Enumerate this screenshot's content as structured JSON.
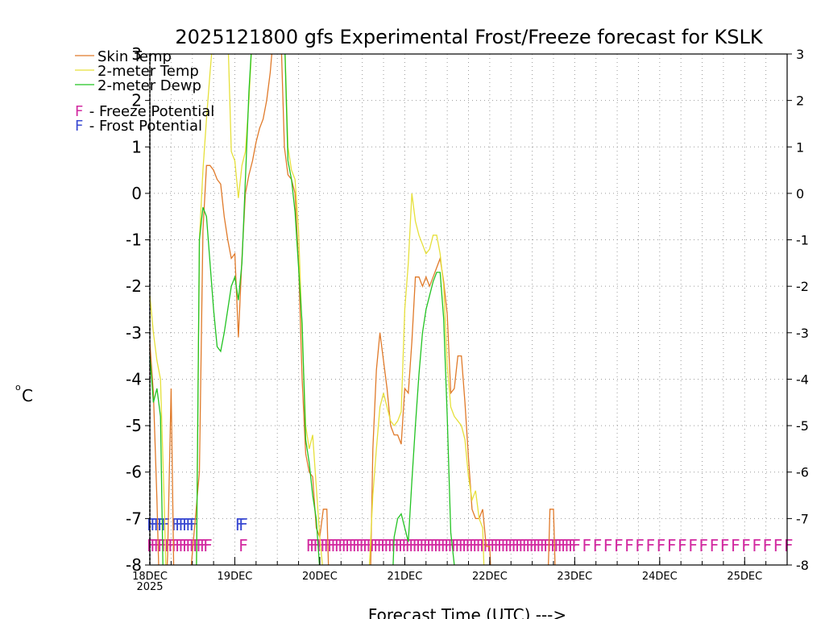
{
  "chart_data": {
    "type": "line",
    "title": "2025121800 gfs Experimental Frost/Freeze forecast for KSLK",
    "xlabel": "Forecast Time (UTC) --->",
    "ylabel": "oC",
    "ylabel_unit": "C",
    "ylim": [
      -8,
      3
    ],
    "xlim_hours": [
      0,
      180
    ],
    "grid": true,
    "y_ticks_left": [
      "3",
      "2",
      "1",
      "0",
      "-1",
      "-2",
      "-3",
      "-4",
      "-5",
      "-6",
      "-7",
      "-8"
    ],
    "y_ticks_right": [
      "3",
      "2",
      "1",
      "0",
      "-1",
      "-2",
      "-3",
      "-4",
      "-5",
      "-6",
      "-7",
      "-8"
    ],
    "x_ticks": [
      {
        "label": "18DEC",
        "sub": "2025",
        "hour": 0
      },
      {
        "label": "19DEC",
        "sub": "",
        "hour": 24
      },
      {
        "label": "20DEC",
        "sub": "",
        "hour": 48
      },
      {
        "label": "21DEC",
        "sub": "",
        "hour": 72
      },
      {
        "label": "22DEC",
        "sub": "",
        "hour": 96
      },
      {
        "label": "23DEC",
        "sub": "",
        "hour": 120
      },
      {
        "label": "24DEC",
        "sub": "",
        "hour": 144
      },
      {
        "label": "25DEC",
        "sub": "",
        "hour": 168
      }
    ],
    "legend": {
      "position": "top-left",
      "series_entries": [
        {
          "label": "Skin Temp",
          "color": "#e07a2a"
        },
        {
          "label": "2-meter Temp",
          "color": "#e6e03a"
        },
        {
          "label": "2-meter Dewp",
          "color": "#22c322"
        }
      ],
      "marker_entries": [
        {
          "mark": "F",
          "text": " - Freeze Potential",
          "color": "#d22aa0"
        },
        {
          "mark": "F",
          "text": " - Frost Potential",
          "color": "#3a4ad2"
        }
      ]
    },
    "series": [
      {
        "name": "Skin Temp",
        "color": "#e07a2a",
        "points": [
          [
            0,
            -3.2
          ],
          [
            1,
            -4.3
          ],
          [
            2,
            -6.6
          ],
          [
            3,
            -9.5
          ],
          [
            4,
            -9.5
          ],
          [
            5,
            -7.8
          ],
          [
            6,
            -4.2
          ],
          [
            7,
            -9.5
          ],
          [
            10,
            -9.5
          ],
          [
            14,
            -6
          ],
          [
            15,
            -0.8
          ],
          [
            16,
            0.6
          ],
          [
            17,
            0.6
          ],
          [
            18,
            0.5
          ],
          [
            19,
            0.3
          ],
          [
            20,
            0.2
          ],
          [
            21,
            -0.5
          ],
          [
            22,
            -1
          ],
          [
            23,
            -1.4
          ],
          [
            24,
            -1.3
          ],
          [
            25,
            -3.1
          ],
          [
            26,
            -1.4
          ],
          [
            27,
            0
          ],
          [
            28,
            0.4
          ],
          [
            29,
            0.7
          ],
          [
            30,
            1.1
          ],
          [
            31,
            1.4
          ],
          [
            32,
            1.6
          ],
          [
            33,
            2
          ],
          [
            34,
            2.6
          ],
          [
            35,
            3.5
          ],
          [
            37,
            3.5
          ],
          [
            38,
            1
          ],
          [
            39,
            0.4
          ],
          [
            40,
            0.3
          ],
          [
            41,
            0
          ],
          [
            42,
            -1.5
          ],
          [
            43,
            -4
          ],
          [
            44,
            -5.6
          ],
          [
            45,
            -6
          ],
          [
            46,
            -6.1
          ],
          [
            47,
            -7.2
          ],
          [
            48,
            -7.4
          ],
          [
            49,
            -6.8
          ],
          [
            50,
            -6.8
          ],
          [
            51,
            -9.5
          ],
          [
            62,
            -9.5
          ],
          [
            63,
            -5.5
          ],
          [
            64,
            -3.8
          ],
          [
            65,
            -3
          ],
          [
            66,
            -3.6
          ],
          [
            67,
            -4.2
          ],
          [
            68,
            -5
          ],
          [
            69,
            -5.2
          ],
          [
            70,
            -5.2
          ],
          [
            71,
            -5.4
          ],
          [
            72,
            -4.2
          ],
          [
            73,
            -4.3
          ],
          [
            74,
            -3.2
          ],
          [
            75,
            -1.8
          ],
          [
            76,
            -1.8
          ],
          [
            77,
            -2
          ],
          [
            78,
            -1.8
          ],
          [
            79,
            -2
          ],
          [
            80,
            -1.8
          ],
          [
            81,
            -1.6
          ],
          [
            82,
            -1.4
          ],
          [
            83,
            -1.9
          ],
          [
            84,
            -2.6
          ],
          [
            85,
            -4.3
          ],
          [
            86,
            -4.2
          ],
          [
            87,
            -3.5
          ],
          [
            88,
            -3.5
          ],
          [
            89,
            -4.5
          ],
          [
            90,
            -5.7
          ],
          [
            91,
            -6.8
          ],
          [
            92,
            -7
          ],
          [
            93,
            -7
          ],
          [
            94,
            -6.8
          ],
          [
            95,
            -7.6
          ],
          [
            96,
            -7.6
          ],
          [
            97,
            -9.5
          ],
          [
            112,
            -9.5
          ],
          [
            113,
            -6.8
          ],
          [
            114,
            -6.8
          ],
          [
            115,
            -9.5
          ]
        ]
      },
      {
        "name": "2-meter Temp",
        "color": "#e6e03a",
        "points": [
          [
            0,
            -2.2
          ],
          [
            1,
            -3
          ],
          [
            2,
            -3.6
          ],
          [
            3,
            -4
          ],
          [
            4,
            -6.5
          ],
          [
            5,
            -9.5
          ],
          [
            13,
            -9.5
          ],
          [
            14,
            -1
          ],
          [
            15,
            0.5
          ],
          [
            16,
            1.6
          ],
          [
            17,
            2.6
          ],
          [
            18,
            3.5
          ],
          [
            22,
            3.5
          ],
          [
            23,
            0.9
          ],
          [
            24,
            0.7
          ],
          [
            25,
            -0.1
          ],
          [
            26,
            0.6
          ],
          [
            27,
            0.9
          ],
          [
            28,
            2
          ],
          [
            29,
            3.5
          ],
          [
            38,
            3.5
          ],
          [
            39,
            1
          ],
          [
            40,
            0.5
          ],
          [
            41,
            0.3
          ],
          [
            42,
            -0.8
          ],
          [
            43,
            -3
          ],
          [
            44,
            -5
          ],
          [
            45,
            -5.5
          ],
          [
            46,
            -5.2
          ],
          [
            47,
            -6.3
          ],
          [
            48,
            -7.4
          ],
          [
            49,
            -8.2
          ],
          [
            60,
            -9.5
          ],
          [
            62,
            -8
          ],
          [
            63,
            -6.5
          ],
          [
            64,
            -5.5
          ],
          [
            65,
            -4.6
          ],
          [
            66,
            -4.3
          ],
          [
            67,
            -4.6
          ],
          [
            68,
            -4.9
          ],
          [
            69,
            -5
          ],
          [
            70,
            -4.9
          ],
          [
            71,
            -4.7
          ],
          [
            72,
            -2.5
          ],
          [
            73,
            -1.5
          ],
          [
            74,
            0
          ],
          [
            75,
            -0.6
          ],
          [
            76,
            -0.9
          ],
          [
            77,
            -1.1
          ],
          [
            78,
            -1.3
          ],
          [
            79,
            -1.2
          ],
          [
            80,
            -0.9
          ],
          [
            81,
            -0.9
          ],
          [
            82,
            -1.3
          ],
          [
            83,
            -2
          ],
          [
            84,
            -3.7
          ],
          [
            85,
            -4.6
          ],
          [
            86,
            -4.8
          ],
          [
            87,
            -4.9
          ],
          [
            88,
            -5
          ],
          [
            89,
            -5.3
          ],
          [
            90,
            -6.1
          ],
          [
            91,
            -6.6
          ],
          [
            92,
            -6.4
          ],
          [
            93,
            -7
          ],
          [
            94,
            -7.2
          ],
          [
            95,
            -9.5
          ]
        ]
      },
      {
        "name": "2-meter Dewp",
        "color": "#22c322",
        "points": [
          [
            0,
            -3.5
          ],
          [
            1,
            -4.5
          ],
          [
            2,
            -4.2
          ],
          [
            3,
            -4.8
          ],
          [
            4,
            -9.5
          ],
          [
            13,
            -9.5
          ],
          [
            14,
            -1
          ],
          [
            15,
            -0.3
          ],
          [
            16,
            -0.5
          ],
          [
            17,
            -1.5
          ],
          [
            18,
            -2.5
          ],
          [
            19,
            -3.3
          ],
          [
            20,
            -3.4
          ],
          [
            21,
            -3
          ],
          [
            22,
            -2.5
          ],
          [
            23,
            -2
          ],
          [
            24,
            -1.8
          ],
          [
            25,
            -2.3
          ],
          [
            26,
            -1.5
          ],
          [
            27,
            0.3
          ],
          [
            28,
            2.2
          ],
          [
            29,
            3.5
          ],
          [
            38,
            3.5
          ],
          [
            39,
            0.7
          ],
          [
            40,
            0.3
          ],
          [
            41,
            -0.4
          ],
          [
            42,
            -1.6
          ],
          [
            43,
            -2.8
          ],
          [
            44,
            -5.3
          ],
          [
            45,
            -5.8
          ],
          [
            46,
            -6.5
          ],
          [
            47,
            -7
          ],
          [
            48,
            -8.1
          ],
          [
            49,
            -9.5
          ],
          [
            68,
            -9.5
          ],
          [
            69,
            -7.4
          ],
          [
            70,
            -7
          ],
          [
            71,
            -6.9
          ],
          [
            72,
            -7.2
          ],
          [
            73,
            -7.5
          ],
          [
            74,
            -6.2
          ],
          [
            75,
            -5
          ],
          [
            76,
            -3.9
          ],
          [
            77,
            -3
          ],
          [
            78,
            -2.5
          ],
          [
            79,
            -2.2
          ],
          [
            80,
            -1.9
          ],
          [
            81,
            -1.7
          ],
          [
            82,
            -1.7
          ],
          [
            83,
            -2.7
          ],
          [
            84,
            -4.8
          ],
          [
            85,
            -7.3
          ],
          [
            86,
            -8
          ],
          [
            87,
            -9.5
          ]
        ]
      }
    ],
    "frost_markers": {
      "label": "Frost Potential",
      "mark": "F",
      "color": "#3a4ad2",
      "y_value": -7.1,
      "hours": [
        0,
        1,
        2,
        3,
        4,
        7,
        8,
        9,
        10,
        11,
        12,
        25,
        26
      ]
    },
    "freeze_markers": {
      "label": "Freeze Potential",
      "mark": "F",
      "color": "#d22aa0",
      "y_value": -7.55,
      "hours": [
        0,
        1,
        2,
        3,
        4,
        5,
        6,
        7,
        8,
        9,
        10,
        11,
        12,
        13,
        14,
        15,
        16,
        26,
        45,
        46,
        47,
        48,
        49,
        50,
        51,
        52,
        53,
        54,
        55,
        56,
        57,
        58,
        59,
        60,
        61,
        62,
        63,
        64,
        65,
        66,
        67,
        68,
        69,
        70,
        71,
        72,
        73,
        74,
        75,
        76,
        77,
        78,
        79,
        80,
        81,
        82,
        83,
        84,
        85,
        86,
        87,
        88,
        89,
        90,
        91,
        92,
        93,
        94,
        95,
        96,
        97,
        98,
        99,
        100,
        101,
        102,
        103,
        104,
        105,
        106,
        107,
        108,
        109,
        110,
        111,
        112,
        113,
        114,
        115,
        116,
        117,
        118,
        119,
        120,
        123,
        126,
        129,
        132,
        135,
        138,
        141,
        144,
        147,
        150,
        153,
        156,
        159,
        162,
        165,
        168,
        171,
        174,
        177,
        180
      ]
    }
  }
}
